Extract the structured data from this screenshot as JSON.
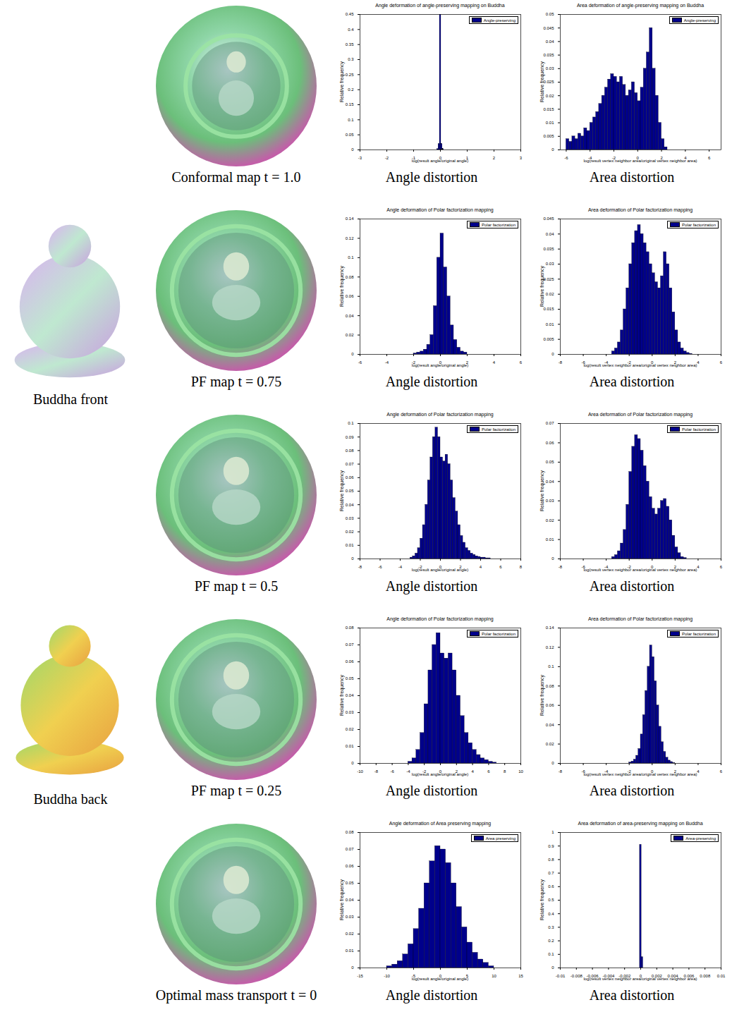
{
  "images": [
    "Buddha front",
    "Buddha back"
  ],
  "rows": [
    "Conformal map t = 1.0",
    "PF map t = 0.75",
    "PF map t = 0.5",
    "PF map t = 0.25",
    "Optimal mass transport t = 0"
  ],
  "chart_data": [
    {
      "type": "histogram",
      "title": "Angle deformation of angle-preserving mapping on Buddha",
      "caption": "Angle distortion",
      "x_label": "log(result angle/original angle)",
      "y_label": "Relative frequency",
      "legend": "upper right",
      "xlim": [
        -3,
        3
      ],
      "xticks": [
        -3,
        -2,
        -1,
        0,
        1,
        2,
        3
      ],
      "ylim": [
        0,
        0.45
      ],
      "yticks": [
        0,
        0.05,
        0.1,
        0.15,
        0.2,
        0.25,
        0.3,
        0.35,
        0.4,
        0.45
      ],
      "bins": [
        -0.125,
        -0.075,
        -0.025,
        0.025,
        0.075,
        0.125
      ],
      "series": [
        {
          "name": "Angle-preserving",
          "color": "#00008b",
          "values": [
            0.003,
            0.02,
            0.45,
            0.02,
            0.003
          ]
        }
      ]
    },
    {
      "type": "histogram",
      "title": "Area deformation of angle-preserving mapping on Buddha",
      "caption": "Area distortion",
      "x_label": "log(result vertex neighbor area/original vertex neighbor area)",
      "y_label": "Relative frequency",
      "legend": "upper right",
      "xlim": [
        -6.5,
        7
      ],
      "xticks": [
        -6,
        -4,
        -2,
        0,
        2,
        4,
        6
      ],
      "ylim": [
        0,
        0.05
      ],
      "yticks": [
        0,
        0.005,
        0.01,
        0.015,
        0.02,
        0.025,
        0.03,
        0.035,
        0.04,
        0.045,
        0.05
      ],
      "bins": [
        -6,
        -5.75,
        -5.5,
        -5.25,
        -5,
        -4.75,
        -4.5,
        -4.25,
        -4,
        -3.75,
        -3.5,
        -3.25,
        -3,
        -2.75,
        -2.5,
        -2.25,
        -2,
        -1.75,
        -1.5,
        -1.25,
        -1,
        -0.75,
        -0.5,
        -0.25,
        0,
        0.25,
        0.5,
        0.75,
        1,
        1.25,
        1.5,
        1.75,
        2,
        2.25,
        2.5
      ],
      "series": [
        {
          "name": "Angle-preserving",
          "color": "#00008b",
          "values": [
            0.004,
            0.003,
            0.005,
            0.004,
            0.006,
            0.005,
            0.008,
            0.007,
            0.01,
            0.012,
            0.014,
            0.017,
            0.02,
            0.023,
            0.026,
            0.028,
            0.027,
            0.025,
            0.027,
            0.024,
            0.02,
            0.022,
            0.025,
            0.021,
            0.018,
            0.023,
            0.03,
            0.036,
            0.045,
            0.03,
            0.02,
            0.01,
            0.004,
            0.001
          ]
        }
      ]
    },
    {
      "type": "histogram",
      "title": "Angle deformation of Polar factorization mapping",
      "caption": "Angle distortion",
      "x_label": "log(result angle/original angle)",
      "y_label": "Relative frequency",
      "legend": "upper right",
      "xlim": [
        -6,
        6
      ],
      "xticks": [
        -6,
        -4,
        -2,
        0,
        2,
        4,
        6
      ],
      "ylim": [
        0,
        0.14
      ],
      "yticks": [
        0,
        0.02,
        0.04,
        0.06,
        0.08,
        0.1,
        0.12,
        0.14
      ],
      "bins": [
        -2,
        -1.75,
        -1.5,
        -1.25,
        -1,
        -0.75,
        -0.5,
        -0.25,
        0,
        0.25,
        0.5,
        0.75,
        1,
        1.25,
        1.5,
        1.75,
        2
      ],
      "series": [
        {
          "name": "Polar factorization",
          "color": "#00008b",
          "values": [
            0.001,
            0.002,
            0.003,
            0.005,
            0.01,
            0.02,
            0.05,
            0.1,
            0.125,
            0.09,
            0.06,
            0.03,
            0.015,
            0.007,
            0.003,
            0.002
          ]
        }
      ]
    },
    {
      "type": "histogram",
      "title": "Area deformation of Polar factorization mapping",
      "caption": "Area distortion",
      "x_label": "log(result vertex neighbor area/original vertex neighbor area)",
      "y_label": "Relative frequency",
      "legend": "upper right",
      "xlim": [
        -8,
        6
      ],
      "xticks": [
        -8,
        -6,
        -4,
        -2,
        0,
        2,
        4,
        6
      ],
      "ylim": [
        0,
        0.045
      ],
      "yticks": [
        0,
        0.005,
        0.01,
        0.015,
        0.02,
        0.025,
        0.03,
        0.035,
        0.04,
        0.045
      ],
      "bins": [
        -3.5,
        -3.25,
        -3,
        -2.75,
        -2.5,
        -2.25,
        -2,
        -1.75,
        -1.5,
        -1.25,
        -1,
        -0.75,
        -0.5,
        -0.25,
        0,
        0.25,
        0.5,
        0.75,
        1,
        1.25,
        1.5,
        1.75,
        2,
        2.25,
        2.5,
        2.75,
        3,
        3.25,
        3.5
      ],
      "series": [
        {
          "name": "Polar factorization",
          "color": "#00008b",
          "values": [
            0.001,
            0.002,
            0.004,
            0.008,
            0.015,
            0.022,
            0.03,
            0.037,
            0.041,
            0.043,
            0.04,
            0.037,
            0.034,
            0.03,
            0.027,
            0.024,
            0.022,
            0.026,
            0.034,
            0.03,
            0.022,
            0.014,
            0.008,
            0.004,
            0.002,
            0.001,
            0.0005,
            0.0002
          ]
        }
      ]
    },
    {
      "type": "histogram",
      "title": "Angle deformation of Polar factorization mapping",
      "caption": "Angle distortion",
      "x_label": "log(result angle/original angle)",
      "y_label": "Relative frequency",
      "legend": "upper right",
      "xlim": [
        -8,
        8
      ],
      "xticks": [
        -8,
        -6,
        -4,
        -2,
        0,
        2,
        4,
        6,
        8
      ],
      "ylim": [
        0,
        0.1
      ],
      "yticks": [
        0,
        0.01,
        0.02,
        0.03,
        0.04,
        0.05,
        0.06,
        0.07,
        0.08,
        0.09,
        0.1
      ],
      "bins": [
        -3,
        -2.75,
        -2.5,
        -2.25,
        -2,
        -1.75,
        -1.5,
        -1.25,
        -1,
        -0.75,
        -0.5,
        -0.25,
        0,
        0.25,
        0.5,
        0.75,
        1,
        1.25,
        1.5,
        1.75,
        2,
        2.25,
        2.5,
        2.75,
        3,
        3.25,
        3.5,
        3.75,
        4,
        4.25,
        4.5,
        4.75,
        5
      ],
      "series": [
        {
          "name": "Polar factorization",
          "color": "#00008b",
          "values": [
            0.001,
            0.002,
            0.004,
            0.008,
            0.015,
            0.025,
            0.04,
            0.058,
            0.075,
            0.09,
            0.097,
            0.09,
            0.075,
            0.072,
            0.077,
            0.07,
            0.058,
            0.045,
            0.035,
            0.025,
            0.017,
            0.012,
            0.008,
            0.006,
            0.004,
            0.003,
            0.002,
            0.0015,
            0.001,
            0.001,
            0.0005,
            0.0005
          ]
        }
      ]
    },
    {
      "type": "histogram",
      "title": "Area deformation of Polar factorization mapping",
      "caption": "Area distortion",
      "x_label": "log(result vertex neighbor area/original vertex neighbor area)",
      "y_label": "Relative frequency",
      "legend": "upper right",
      "xlim": [
        -8,
        6
      ],
      "xticks": [
        -8,
        -6,
        -4,
        -2,
        0,
        2,
        4,
        6
      ],
      "ylim": [
        0,
        0.07
      ],
      "yticks": [
        0,
        0.01,
        0.02,
        0.03,
        0.04,
        0.05,
        0.06,
        0.07
      ],
      "bins": [
        -3.5,
        -3.25,
        -3,
        -2.75,
        -2.5,
        -2.25,
        -2,
        -1.75,
        -1.5,
        -1.25,
        -1,
        -0.75,
        -0.5,
        -0.25,
        0,
        0.25,
        0.5,
        0.75,
        1,
        1.25,
        1.5,
        1.75,
        2,
        2.25,
        2.5,
        2.75,
        3
      ],
      "series": [
        {
          "name": "Polar factorization",
          "color": "#00008b",
          "values": [
            0.001,
            0.002,
            0.004,
            0.008,
            0.015,
            0.028,
            0.045,
            0.058,
            0.064,
            0.062,
            0.056,
            0.048,
            0.04,
            0.032,
            0.026,
            0.023,
            0.026,
            0.03,
            0.031,
            0.027,
            0.02,
            0.012,
            0.006,
            0.003,
            0.001,
            0.0005
          ]
        }
      ]
    },
    {
      "type": "histogram",
      "title": "Angle deformation of Polar factorization mapping",
      "caption": "Angle distortion",
      "x_label": "log(result angle/original angle)",
      "y_label": "Relative frequency",
      "legend": "upper right",
      "xlim": [
        -10,
        10
      ],
      "xticks": [
        -10,
        -8,
        -6,
        -4,
        -2,
        0,
        2,
        4,
        6,
        8,
        10
      ],
      "ylim": [
        0,
        0.08
      ],
      "yticks": [
        0,
        0.01,
        0.02,
        0.03,
        0.04,
        0.05,
        0.06,
        0.07,
        0.08
      ],
      "bins": [
        -4,
        -3.5,
        -3,
        -2.5,
        -2,
        -1.5,
        -1,
        -0.5,
        0,
        0.5,
        1,
        1.5,
        2,
        2.5,
        3,
        3.5,
        4,
        4.5,
        5,
        5.5,
        6,
        6.5,
        7
      ],
      "series": [
        {
          "name": "Polar factorization",
          "color": "#00008b",
          "values": [
            0.001,
            0.003,
            0.008,
            0.018,
            0.035,
            0.055,
            0.07,
            0.077,
            0.065,
            0.062,
            0.065,
            0.055,
            0.04,
            0.028,
            0.018,
            0.012,
            0.008,
            0.005,
            0.003,
            0.002,
            0.001,
            0.0005
          ]
        }
      ]
    },
    {
      "type": "histogram",
      "title": "Area deformation of Polar factorization mapping",
      "caption": "Area distortion",
      "x_label": "log(result vertex neighbor area/original vertex neighbor area)",
      "y_label": "Relative frequency",
      "legend": "upper right",
      "xlim": [
        -8,
        6
      ],
      "xticks": [
        -8,
        -6,
        -4,
        -2,
        0,
        2,
        4,
        6
      ],
      "ylim": [
        0,
        0.14
      ],
      "yticks": [
        0,
        0.02,
        0.04,
        0.06,
        0.08,
        0.1,
        0.12,
        0.14
      ],
      "bins": [
        -2,
        -1.8,
        -1.6,
        -1.4,
        -1.2,
        -1,
        -0.8,
        -0.6,
        -0.4,
        -0.2,
        0,
        0.2,
        0.4,
        0.6,
        0.8,
        1,
        1.2,
        1.4,
        1.6,
        1.8,
        2
      ],
      "series": [
        {
          "name": "Polar factorization",
          "color": "#00008b",
          "values": [
            0.001,
            0.002,
            0.004,
            0.008,
            0.015,
            0.03,
            0.05,
            0.075,
            0.1,
            0.122,
            0.11,
            0.085,
            0.06,
            0.038,
            0.022,
            0.012,
            0.006,
            0.003,
            0.0015,
            0.0005
          ]
        }
      ]
    },
    {
      "type": "histogram",
      "title": "Angle deformation of Area preserving mapping",
      "caption": "Angle distortion",
      "x_label": "log(result angle/original angle)",
      "y_label": "Relative frequency",
      "legend": "upper right",
      "xlim": [
        -15,
        15
      ],
      "xticks": [
        -15,
        -10,
        -5,
        0,
        5,
        10,
        15
      ],
      "ylim": [
        0,
        0.08
      ],
      "yticks": [
        0,
        0.01,
        0.02,
        0.03,
        0.04,
        0.05,
        0.06,
        0.07,
        0.08
      ],
      "bins": [
        -10,
        -9,
        -8,
        -7,
        -6,
        -5,
        -4,
        -3,
        -2,
        -1,
        0,
        1,
        2,
        3,
        4,
        5,
        6,
        7,
        8,
        9,
        10
      ],
      "series": [
        {
          "name": "Area preserving",
          "color": "#00008b",
          "values": [
            0.001,
            0.002,
            0.004,
            0.008,
            0.014,
            0.023,
            0.035,
            0.05,
            0.063,
            0.072,
            0.07,
            0.062,
            0.05,
            0.036,
            0.024,
            0.015,
            0.009,
            0.005,
            0.003,
            0.001
          ]
        }
      ]
    },
    {
      "type": "histogram",
      "title": "Area deformation of area-preserving mapping on Buddha",
      "caption": "Area distortion",
      "x_label": "log(result vertex neighbor area/original vertex neighbor area)",
      "y_label": "Relative frequency",
      "legend": "upper right",
      "xlim": [
        -0.01,
        0.01
      ],
      "xticks": [
        -0.01,
        -0.008,
        -0.006,
        -0.004,
        -0.002,
        0,
        0.002,
        0.004,
        0.006,
        0.008,
        0.01
      ],
      "ylim": [
        0,
        1
      ],
      "yticks": [
        0,
        0.1,
        0.2,
        0.3,
        0.4,
        0.5,
        0.6,
        0.7,
        0.8,
        0.9,
        1
      ],
      "bins": [
        -0.0001,
        0.0001,
        0.0003
      ],
      "series": [
        {
          "name": "Area-preserving",
          "color": "#00008b",
          "values": [
            0.91,
            0.08
          ]
        }
      ]
    }
  ]
}
